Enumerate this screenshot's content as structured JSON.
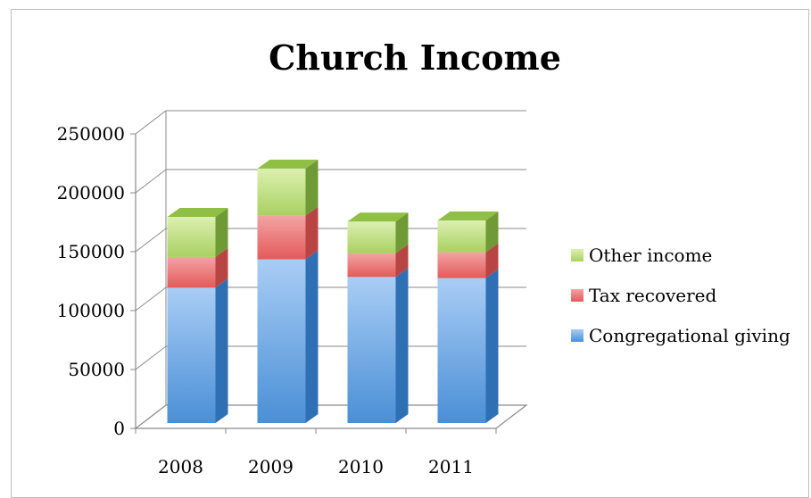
{
  "chart_data": {
    "type": "bar",
    "stacked": true,
    "title": "Church Income",
    "xlabel": "",
    "ylabel": "",
    "categories": [
      "2008",
      "2009",
      "2010",
      "2011"
    ],
    "ylim": [
      0,
      250000
    ],
    "yticks": [
      "0",
      "50000",
      "100000",
      "150000",
      "200000",
      "250000"
    ],
    "series": [
      {
        "name": "Congregational giving",
        "values": [
          115000,
          139000,
          124000,
          123000
        ],
        "color": "#5b9bd5"
      },
      {
        "name": "Tax recovered",
        "values": [
          26000,
          37000,
          20000,
          22000
        ],
        "color": "#e06666"
      },
      {
        "name": "Other income",
        "values": [
          34000,
          40000,
          27000,
          27000
        ],
        "color": "#9bc85a"
      }
    ],
    "legend_order": [
      "Other income",
      "Tax recovered",
      "Congregational giving"
    ],
    "legend_position": "right",
    "grid": true
  }
}
